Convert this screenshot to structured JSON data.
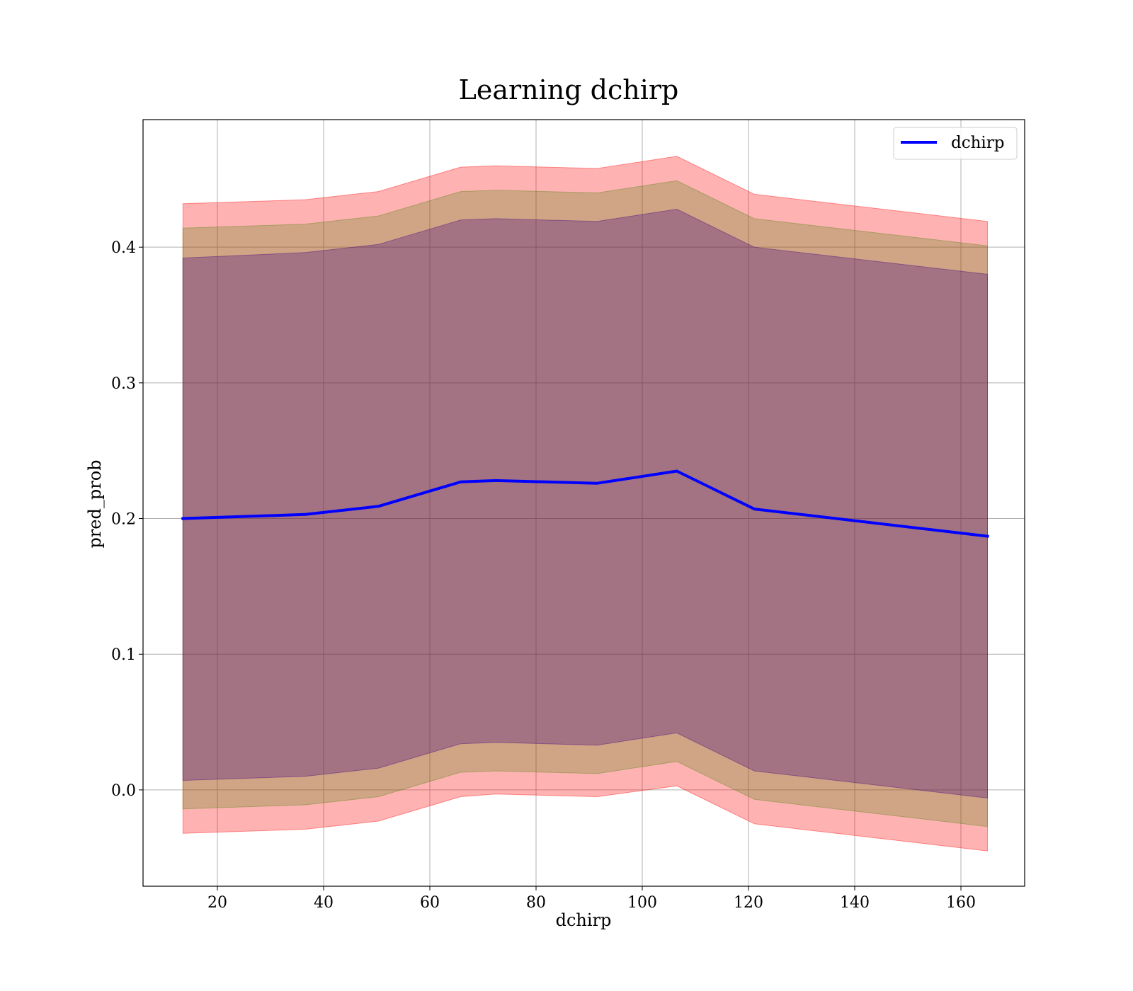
{
  "chart_data": {
    "type": "line",
    "title": "Learning dchirp",
    "xlabel": "dchirp",
    "ylabel": "pred_prob",
    "xlim": [
      6,
      172
    ],
    "ylim": [
      -0.071,
      0.494
    ],
    "x_ticks": [
      20,
      40,
      60,
      80,
      100,
      120,
      140,
      160
    ],
    "y_ticks": [
      0.0,
      0.1,
      0.2,
      0.3,
      0.4
    ],
    "x_tick_labels": [
      "20",
      "40",
      "60",
      "80",
      "100",
      "120",
      "140",
      "160"
    ],
    "y_tick_labels": [
      "0.0",
      "0.1",
      "0.2",
      "0.3",
      "0.4"
    ],
    "grid": true,
    "legend": {
      "position": "top-right",
      "entries": [
        "dchirp"
      ]
    },
    "x": [
      13.5,
      36.5,
      50.3,
      65.8,
      72.4,
      91.5,
      106.5,
      121.1,
      165
    ],
    "series": [
      {
        "name": "dchirp",
        "color": "#0000ff",
        "values": [
          0.2,
          0.203,
          0.209,
          0.227,
          0.228,
          0.226,
          0.235,
          0.207,
          0.187
        ]
      }
    ],
    "bands": [
      {
        "color": "#ff0000",
        "opacity": 0.3,
        "lower": [
          -0.032,
          -0.029,
          -0.023,
          -0.005,
          -0.003,
          -0.005,
          0.003,
          -0.025,
          -0.045
        ],
        "upper": [
          0.432,
          0.435,
          0.441,
          0.459,
          0.46,
          0.458,
          0.467,
          0.439,
          0.419
        ]
      },
      {
        "color": "#408000",
        "opacity": 0.25,
        "lower": [
          -0.014,
          -0.011,
          -0.005,
          0.013,
          0.014,
          0.012,
          0.021,
          -0.007,
          -0.027
        ],
        "upper": [
          0.414,
          0.417,
          0.423,
          0.441,
          0.442,
          0.44,
          0.449,
          0.421,
          0.401
        ]
      },
      {
        "color": "#400080",
        "opacity": 0.3,
        "lower": [
          0.007,
          0.01,
          0.016,
          0.034,
          0.035,
          0.033,
          0.042,
          0.014,
          -0.006
        ],
        "upper": [
          0.392,
          0.396,
          0.402,
          0.42,
          0.421,
          0.419,
          0.428,
          0.4,
          0.38
        ]
      }
    ]
  }
}
